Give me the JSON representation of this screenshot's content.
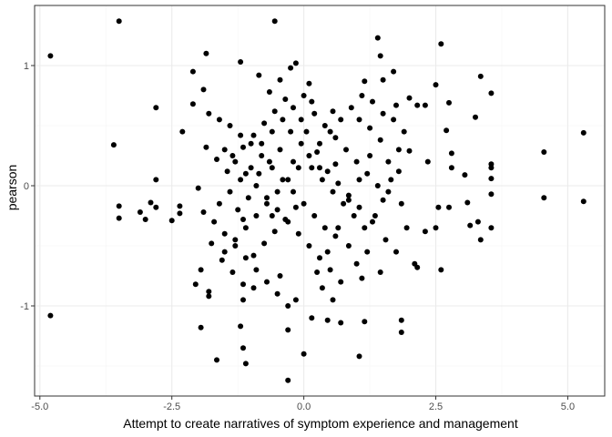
{
  "chart_data": {
    "type": "scatter",
    "title": "",
    "xlabel": "Attempt to create narratives of symptom experience and management",
    "ylabel": "pearson",
    "xlim": [
      -5.1,
      5.7
    ],
    "ylim": [
      -1.75,
      1.5
    ],
    "x_ticks": [
      -5.0,
      -2.5,
      0.0,
      2.5,
      5.0
    ],
    "x_tick_labels": [
      "-5.0",
      "-2.5",
      "0.0",
      "2.5",
      "5.0"
    ],
    "y_ticks": [
      -1,
      0,
      1
    ],
    "y_tick_labels": [
      "-1",
      "0",
      "1"
    ],
    "grid": true,
    "theme": "bw",
    "point_color": "#000000",
    "panel_border_color": "#333333",
    "major_grid_color": "#ebebeb",
    "minor_grid_color": "#f5f5f5",
    "points": [
      [
        -4.8,
        1.08
      ],
      [
        -4.8,
        -1.08
      ],
      [
        -3.5,
        1.37
      ],
      [
        -3.6,
        0.34
      ],
      [
        -3.5,
        -0.17
      ],
      [
        -3.5,
        -0.27
      ],
      [
        -2.8,
        0.65
      ],
      [
        -2.8,
        0.05
      ],
      [
        -2.8,
        -0.18
      ],
      [
        -2.9,
        -0.14
      ],
      [
        -3.0,
        -0.28
      ],
      [
        -3.1,
        -0.22
      ],
      [
        -2.5,
        -0.29
      ],
      [
        -2.35,
        -0.17
      ],
      [
        -2.35,
        -0.23
      ],
      [
        -2.3,
        0.45
      ],
      [
        -2.1,
        0.95
      ],
      [
        -2.1,
        0.68
      ],
      [
        -1.85,
        1.1
      ],
      [
        -1.9,
        0.8
      ],
      [
        -2.0,
        -0.02
      ],
      [
        -2.05,
        -0.82
      ],
      [
        -1.95,
        -0.7
      ],
      [
        -1.95,
        -1.18
      ],
      [
        -1.8,
        -0.88
      ],
      [
        -1.8,
        -0.92
      ],
      [
        -1.65,
        -1.45
      ],
      [
        -1.2,
        1.03
      ],
      [
        -0.55,
        1.37
      ],
      [
        -0.15,
        1.02
      ],
      [
        -0.3,
        -1.62
      ],
      [
        -1.1,
        -1.48
      ],
      [
        -1.15,
        -1.35
      ],
      [
        -1.2,
        -1.17
      ],
      [
        0.0,
        -1.4
      ],
      [
        -0.3,
        -1.2
      ],
      [
        1.05,
        -1.42
      ],
      [
        0.7,
        -1.14
      ],
      [
        0.45,
        -1.12
      ],
      [
        0.15,
        -1.1
      ],
      [
        1.15,
        -1.13
      ],
      [
        1.85,
        -1.12
      ],
      [
        1.85,
        -1.22
      ],
      [
        1.45,
        -0.72
      ],
      [
        1.1,
        -0.77
      ],
      [
        1.15,
        0.87
      ],
      [
        1.5,
        0.88
      ],
      [
        1.75,
        0.67
      ],
      [
        2.0,
        0.73
      ],
      [
        2.15,
        0.67
      ],
      [
        2.3,
        0.67
      ],
      [
        2.5,
        0.84
      ],
      [
        2.6,
        1.18
      ],
      [
        2.75,
        0.69
      ],
      [
        2.35,
        0.2
      ],
      [
        2.7,
        0.46
      ],
      [
        2.8,
        0.27
      ],
      [
        2.8,
        0.15
      ],
      [
        2.75,
        -0.18
      ],
      [
        2.6,
        -0.7
      ],
      [
        2.1,
        -0.65
      ],
      [
        2.15,
        -0.68
      ],
      [
        2.5,
        -0.35
      ],
      [
        2.3,
        -0.38
      ],
      [
        2.55,
        -0.18
      ],
      [
        3.05,
        0.09
      ],
      [
        3.1,
        -0.14
      ],
      [
        3.15,
        -0.33
      ],
      [
        3.25,
        0.57
      ],
      [
        3.35,
        0.91
      ],
      [
        3.35,
        -0.45
      ],
      [
        3.3,
        -0.3
      ],
      [
        3.55,
        0.77
      ],
      [
        3.55,
        0.18
      ],
      [
        3.55,
        0.15
      ],
      [
        3.55,
        0.06
      ],
      [
        3.55,
        -0.07
      ],
      [
        3.55,
        -0.35
      ],
      [
        4.55,
        0.28
      ],
      [
        4.55,
        -0.1
      ],
      [
        5.3,
        0.44
      ],
      [
        5.3,
        -0.13
      ],
      [
        1.4,
        1.23
      ],
      [
        1.45,
        1.08
      ],
      [
        1.7,
        0.95
      ],
      [
        2.0,
        0.29
      ],
      [
        1.8,
        0.12
      ],
      [
        1.6,
        -0.05
      ],
      [
        1.5,
        -0.12
      ],
      [
        1.3,
        -0.3
      ],
      [
        1.2,
        -0.55
      ],
      [
        1.0,
        -0.65
      ],
      [
        0.85,
        -0.5
      ],
      [
        0.6,
        -0.42
      ],
      [
        0.4,
        -0.35
      ],
      [
        0.2,
        -0.25
      ],
      [
        0.0,
        -0.15
      ],
      [
        -0.2,
        -0.05
      ],
      [
        -0.4,
        0.05
      ],
      [
        -0.6,
        0.15
      ],
      [
        -0.8,
        0.25
      ],
      [
        -1.0,
        0.35
      ],
      [
        -1.2,
        0.42
      ],
      [
        -1.4,
        0.5
      ],
      [
        -1.6,
        0.55
      ],
      [
        -1.8,
        0.6
      ],
      [
        -1.5,
        0.3
      ],
      [
        -1.3,
        0.2
      ],
      [
        -1.1,
        0.1
      ],
      [
        -0.9,
        0.0
      ],
      [
        -0.7,
        -0.1
      ],
      [
        -0.5,
        -0.2
      ],
      [
        -0.3,
        -0.3
      ],
      [
        -0.1,
        -0.4
      ],
      [
        0.1,
        -0.5
      ],
      [
        0.3,
        -0.6
      ],
      [
        0.5,
        -0.7
      ],
      [
        0.7,
        -0.8
      ],
      [
        -1.7,
        -0.3
      ],
      [
        -1.5,
        -0.4
      ],
      [
        -1.3,
        -0.5
      ],
      [
        -1.1,
        -0.6
      ],
      [
        -0.9,
        -0.7
      ],
      [
        -0.7,
        -0.8
      ],
      [
        -0.5,
        -0.9
      ],
      [
        -0.3,
        -1.0
      ],
      [
        -1.6,
        -0.15
      ],
      [
        -1.4,
        -0.05
      ],
      [
        -1.2,
        0.05
      ],
      [
        -1.0,
        0.15
      ],
      [
        -0.8,
        0.35
      ],
      [
        -0.6,
        0.45
      ],
      [
        -0.4,
        0.55
      ],
      [
        -0.2,
        0.65
      ],
      [
        0.0,
        0.75
      ],
      [
        0.2,
        0.6
      ],
      [
        0.4,
        0.5
      ],
      [
        0.6,
        0.4
      ],
      [
        0.8,
        0.3
      ],
      [
        1.0,
        0.2
      ],
      [
        1.2,
        0.1
      ],
      [
        1.4,
        0.0
      ],
      [
        1.6,
        0.2
      ],
      [
        1.8,
        0.3
      ],
      [
        1.9,
        0.45
      ],
      [
        1.7,
        0.55
      ],
      [
        1.5,
        0.6
      ],
      [
        1.3,
        0.7
      ],
      [
        1.1,
        0.75
      ],
      [
        0.9,
        0.65
      ],
      [
        0.7,
        0.55
      ],
      [
        0.5,
        0.45
      ],
      [
        0.3,
        0.35
      ],
      [
        0.1,
        0.25
      ],
      [
        -0.1,
        0.15
      ],
      [
        -0.3,
        0.05
      ],
      [
        -0.5,
        -0.05
      ],
      [
        -0.7,
        -0.15
      ],
      [
        -0.9,
        -0.25
      ],
      [
        -1.1,
        -0.35
      ],
      [
        -1.3,
        -0.45
      ],
      [
        -1.5,
        -0.55
      ],
      [
        -0.85,
        0.92
      ],
      [
        -0.45,
        0.88
      ],
      [
        -0.25,
        0.98
      ],
      [
        -0.65,
        0.78
      ],
      [
        0.15,
        0.7
      ],
      [
        0.55,
        0.62
      ],
      [
        1.05,
        0.55
      ],
      [
        1.25,
        0.48
      ],
      [
        0.35,
        -0.85
      ],
      [
        0.55,
        -0.95
      ],
      [
        -0.15,
        -0.95
      ],
      [
        -0.45,
        -0.75
      ],
      [
        -0.95,
        -0.85
      ],
      [
        -1.15,
        -0.95
      ],
      [
        1.15,
        -0.35
      ],
      [
        1.35,
        -0.25
      ],
      [
        1.55,
        -0.45
      ],
      [
        1.75,
        -0.55
      ],
      [
        0.95,
        -0.25
      ],
      [
        0.75,
        -0.15
      ],
      [
        0.55,
        -0.05
      ],
      [
        0.35,
        0.05
      ],
      [
        0.15,
        0.15
      ],
      [
        -0.05,
        0.35
      ],
      [
        -0.25,
        0.45
      ],
      [
        -0.45,
        0.3
      ],
      [
        -0.65,
        0.2
      ],
      [
        -0.85,
        0.1
      ],
      [
        -1.05,
        -0.1
      ],
      [
        -1.25,
        -0.2
      ],
      [
        -1.45,
        0.12
      ],
      [
        -1.65,
        0.22
      ],
      [
        -1.85,
        0.32
      ],
      [
        -1.9,
        -0.22
      ],
      [
        -1.75,
        -0.48
      ],
      [
        -1.55,
        -0.62
      ],
      [
        -1.35,
        -0.72
      ],
      [
        -1.15,
        -0.82
      ],
      [
        0.25,
        -0.72
      ],
      [
        0.45,
        -0.55
      ],
      [
        0.65,
        -0.35
      ],
      [
        0.85,
        -0.12
      ],
      [
        1.05,
        0.05
      ],
      [
        1.25,
        0.25
      ],
      [
        1.45,
        0.38
      ],
      [
        1.65,
        0.05
      ],
      [
        1.85,
        -0.15
      ],
      [
        1.95,
        -0.35
      ],
      [
        -0.35,
        0.72
      ],
      [
        -0.55,
        0.62
      ],
      [
        -0.75,
        0.52
      ],
      [
        -0.95,
        0.42
      ],
      [
        -1.15,
        0.32
      ],
      [
        -1.35,
        0.25
      ],
      [
        0.05,
        0.45
      ],
      [
        0.25,
        0.28
      ],
      [
        0.45,
        0.12
      ],
      [
        0.65,
        0.02
      ],
      [
        0.85,
        -0.08
      ],
      [
        1.05,
        -0.18
      ],
      [
        -0.15,
        -0.18
      ],
      [
        -0.35,
        -0.28
      ],
      [
        -0.55,
        -0.38
      ],
      [
        -0.75,
        -0.48
      ],
      [
        -0.95,
        -0.58
      ],
      [
        -1.15,
        -0.28
      ],
      [
        0.1,
        0.85
      ],
      [
        -0.05,
        0.55
      ],
      [
        0.3,
        0.15
      ],
      [
        -0.2,
        0.2
      ],
      [
        0.6,
        0.18
      ],
      [
        -0.6,
        -0.25
      ]
    ]
  }
}
